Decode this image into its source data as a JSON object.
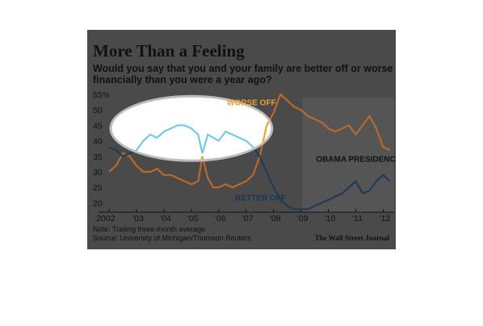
{
  "chart_data": {
    "type": "line",
    "title": "More Than a Feeling",
    "subtitle": "Would you say that you and your family are better off or worse off financially than you were a year ago?",
    "x_tick_labels": [
      "2002",
      "'03",
      "'04",
      "'05",
      "'06",
      "'07",
      "'08",
      "'09",
      "'10",
      "'11",
      "'12"
    ],
    "x_ticks": [
      2002,
      2003,
      2004,
      2005,
      2006,
      2007,
      2008,
      2009,
      2010,
      2011,
      2012
    ],
    "xlim": [
      2001.85,
      2012.4
    ],
    "y_ticks": [
      20,
      25,
      30,
      35,
      40,
      45,
      50,
      55
    ],
    "y_tick_labels": [
      "20",
      "25",
      "30",
      "35",
      "40",
      "45",
      "50",
      "55%"
    ],
    "ylim": [
      17,
      56
    ],
    "grid": false,
    "series": [
      {
        "name": "WORSE OFF",
        "color": "#b86a2c",
        "x": [
          2002.0,
          2002.25,
          2002.5,
          2002.75,
          2003.0,
          2003.25,
          2003.5,
          2003.75,
          2004.0,
          2004.25,
          2004.5,
          2004.75,
          2005.0,
          2005.25,
          2005.4,
          2005.6,
          2005.8,
          2006.0,
          2006.25,
          2006.5,
          2006.75,
          2007.0,
          2007.25,
          2007.5,
          2007.75,
          2008.0,
          2008.25,
          2008.5,
          2008.75,
          2009.0,
          2009.25,
          2009.5,
          2009.75,
          2010.0,
          2010.25,
          2010.5,
          2010.75,
          2011.0,
          2011.25,
          2011.5,
          2011.75,
          2012.0,
          2012.25
        ],
        "values": [
          30,
          32,
          36,
          35,
          32,
          30,
          30,
          31,
          29,
          29,
          28,
          27,
          26,
          27,
          35,
          28,
          25,
          25,
          26,
          25,
          26,
          27,
          29,
          35,
          45,
          49,
          55,
          53,
          51,
          50,
          48,
          47,
          46,
          44,
          43,
          44,
          45,
          42,
          45,
          48,
          44,
          38,
          37
        ]
      },
      {
        "name": "BETTER OFF",
        "color": "#223a55",
        "x": [
          2002.0,
          2002.25,
          2002.5,
          2002.75,
          2003.0,
          2003.25,
          2003.5,
          2003.75,
          2004.0,
          2004.25,
          2004.5,
          2004.75,
          2005.0,
          2005.25,
          2005.4,
          2005.6,
          2005.8,
          2006.0,
          2006.25,
          2006.5,
          2006.75,
          2007.0,
          2007.25,
          2007.5,
          2007.75,
          2008.0,
          2008.25,
          2008.5,
          2008.75,
          2009.0,
          2009.25,
          2009.5,
          2009.75,
          2010.0,
          2010.25,
          2010.5,
          2010.75,
          2011.0,
          2011.25,
          2011.5,
          2011.75,
          2012.0,
          2012.25
        ],
        "values": [
          38,
          37,
          35,
          36,
          37,
          40,
          42,
          41,
          43,
          44,
          45,
          45,
          44,
          42,
          36,
          42,
          41,
          40,
          43,
          42,
          41,
          40,
          38,
          35,
          30,
          25,
          21,
          19,
          18,
          18,
          18,
          19,
          20,
          21,
          22,
          23,
          25,
          27,
          23,
          24,
          27,
          29,
          27
        ]
      }
    ],
    "annotations": [
      "OBAMA PRESIDENCY"
    ],
    "shaded_region": {
      "label": "OBAMA PRESIDENCY",
      "x_start": 2009.05,
      "x_end": 2012.4
    },
    "highlight": {
      "shape": "white ellipse",
      "covers_x": [
        2002.1,
        2007.9
      ],
      "covers_y": [
        34,
        54
      ]
    },
    "note": "Note: Trailing three-month average",
    "source": "Source: University of Michigan/Thomson Reuters",
    "credit": "The Wall Street Journal"
  }
}
